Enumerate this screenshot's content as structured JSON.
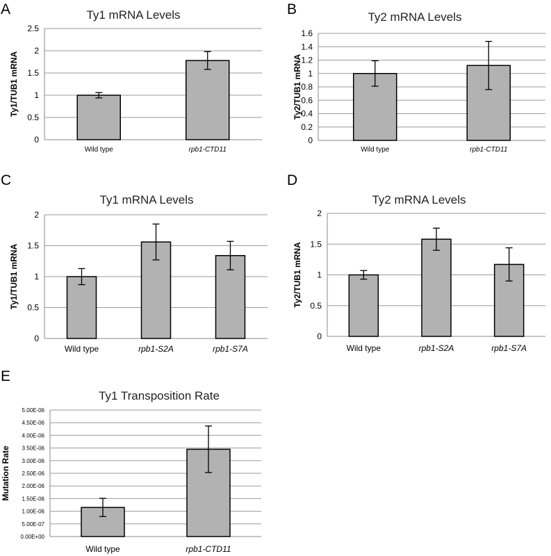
{
  "chart_data": [
    {
      "panel": "A",
      "type": "bar",
      "title": "Ty1 mRNA Levels",
      "ylabel": "Ty1/TUB1 mRNA",
      "xlabel": "",
      "categories": [
        "Wild type",
        "rpb1-CTD11"
      ],
      "italic_categories": [
        false,
        true
      ],
      "values": [
        1.0,
        1.78
      ],
      "errors": [
        0.06,
        0.2
      ],
      "ylim": [
        0,
        2.5
      ],
      "yticks": [
        "0",
        "0.5",
        "1",
        "1.5",
        "2",
        "2.5"
      ],
      "grid": true,
      "bar_color": "#b2b2b2"
    },
    {
      "panel": "B",
      "type": "bar",
      "title": "Ty2 mRNA Levels",
      "ylabel": "Ty2/TUB1 mRNA",
      "xlabel": "",
      "categories": [
        "Wild type",
        "rpb1-CTD11"
      ],
      "italic_categories": [
        false,
        true
      ],
      "values": [
        1.0,
        1.12
      ],
      "errors": [
        0.19,
        0.36
      ],
      "ylim": [
        0,
        1.6
      ],
      "yticks": [
        "0",
        "0.2",
        "0.4",
        "0.6",
        "0.8",
        "1",
        "1.2",
        "1.4",
        "1.6"
      ],
      "grid": true,
      "bar_color": "#b2b2b2"
    },
    {
      "panel": "C",
      "type": "bar",
      "title": "Ty1 mRNA Levels",
      "ylabel": "Ty1/TUB1 mRNA",
      "xlabel": "",
      "categories": [
        "Wild type",
        "rpb1-S2A",
        "rpb1-S7A"
      ],
      "italic_categories": [
        false,
        true,
        true
      ],
      "values": [
        1.0,
        1.56,
        1.34
      ],
      "errors": [
        0.13,
        0.29,
        0.23
      ],
      "ylim": [
        0,
        2
      ],
      "yticks": [
        "0",
        "0.5",
        "1",
        "1.5",
        "2"
      ],
      "grid": true,
      "bar_color": "#b2b2b2"
    },
    {
      "panel": "D",
      "type": "bar",
      "title": "Ty2 mRNA Levels",
      "ylabel": "Ty2/TUB1 mRNA",
      "xlabel": "",
      "categories": [
        "Wild type",
        "rpb1-S2A",
        "rpb1-S7A"
      ],
      "italic_categories": [
        false,
        true,
        true
      ],
      "values": [
        1.0,
        1.58,
        1.17
      ],
      "errors": [
        0.07,
        0.18,
        0.27
      ],
      "ylim": [
        0,
        2
      ],
      "yticks": [
        "0",
        "0.5",
        "1",
        "1.5",
        "2"
      ],
      "grid": true,
      "bar_color": "#b2b2b2"
    },
    {
      "panel": "E",
      "type": "bar",
      "title": "Ty1 Transposition Rate",
      "ylabel": "Mutation Rate",
      "xlabel": "",
      "categories": [
        "Wild type",
        "rpb1-CTD11"
      ],
      "italic_categories": [
        false,
        true
      ],
      "values": [
        1.15e-06,
        3.45e-06
      ],
      "errors": [
        3.6e-07,
        9.2e-07
      ],
      "ylim": [
        0,
        5e-06
      ],
      "yticks": [
        "0.00E+00",
        "5.00E-07",
        "1.00E-06",
        "1.50E-06",
        "2.00E-06",
        "2.50E-06",
        "3.00E-06",
        "3.50E-06",
        "4.00E-06",
        "4.50E-06",
        "5.00E-06"
      ],
      "grid": true,
      "bar_color": "#b2b2b2"
    }
  ]
}
